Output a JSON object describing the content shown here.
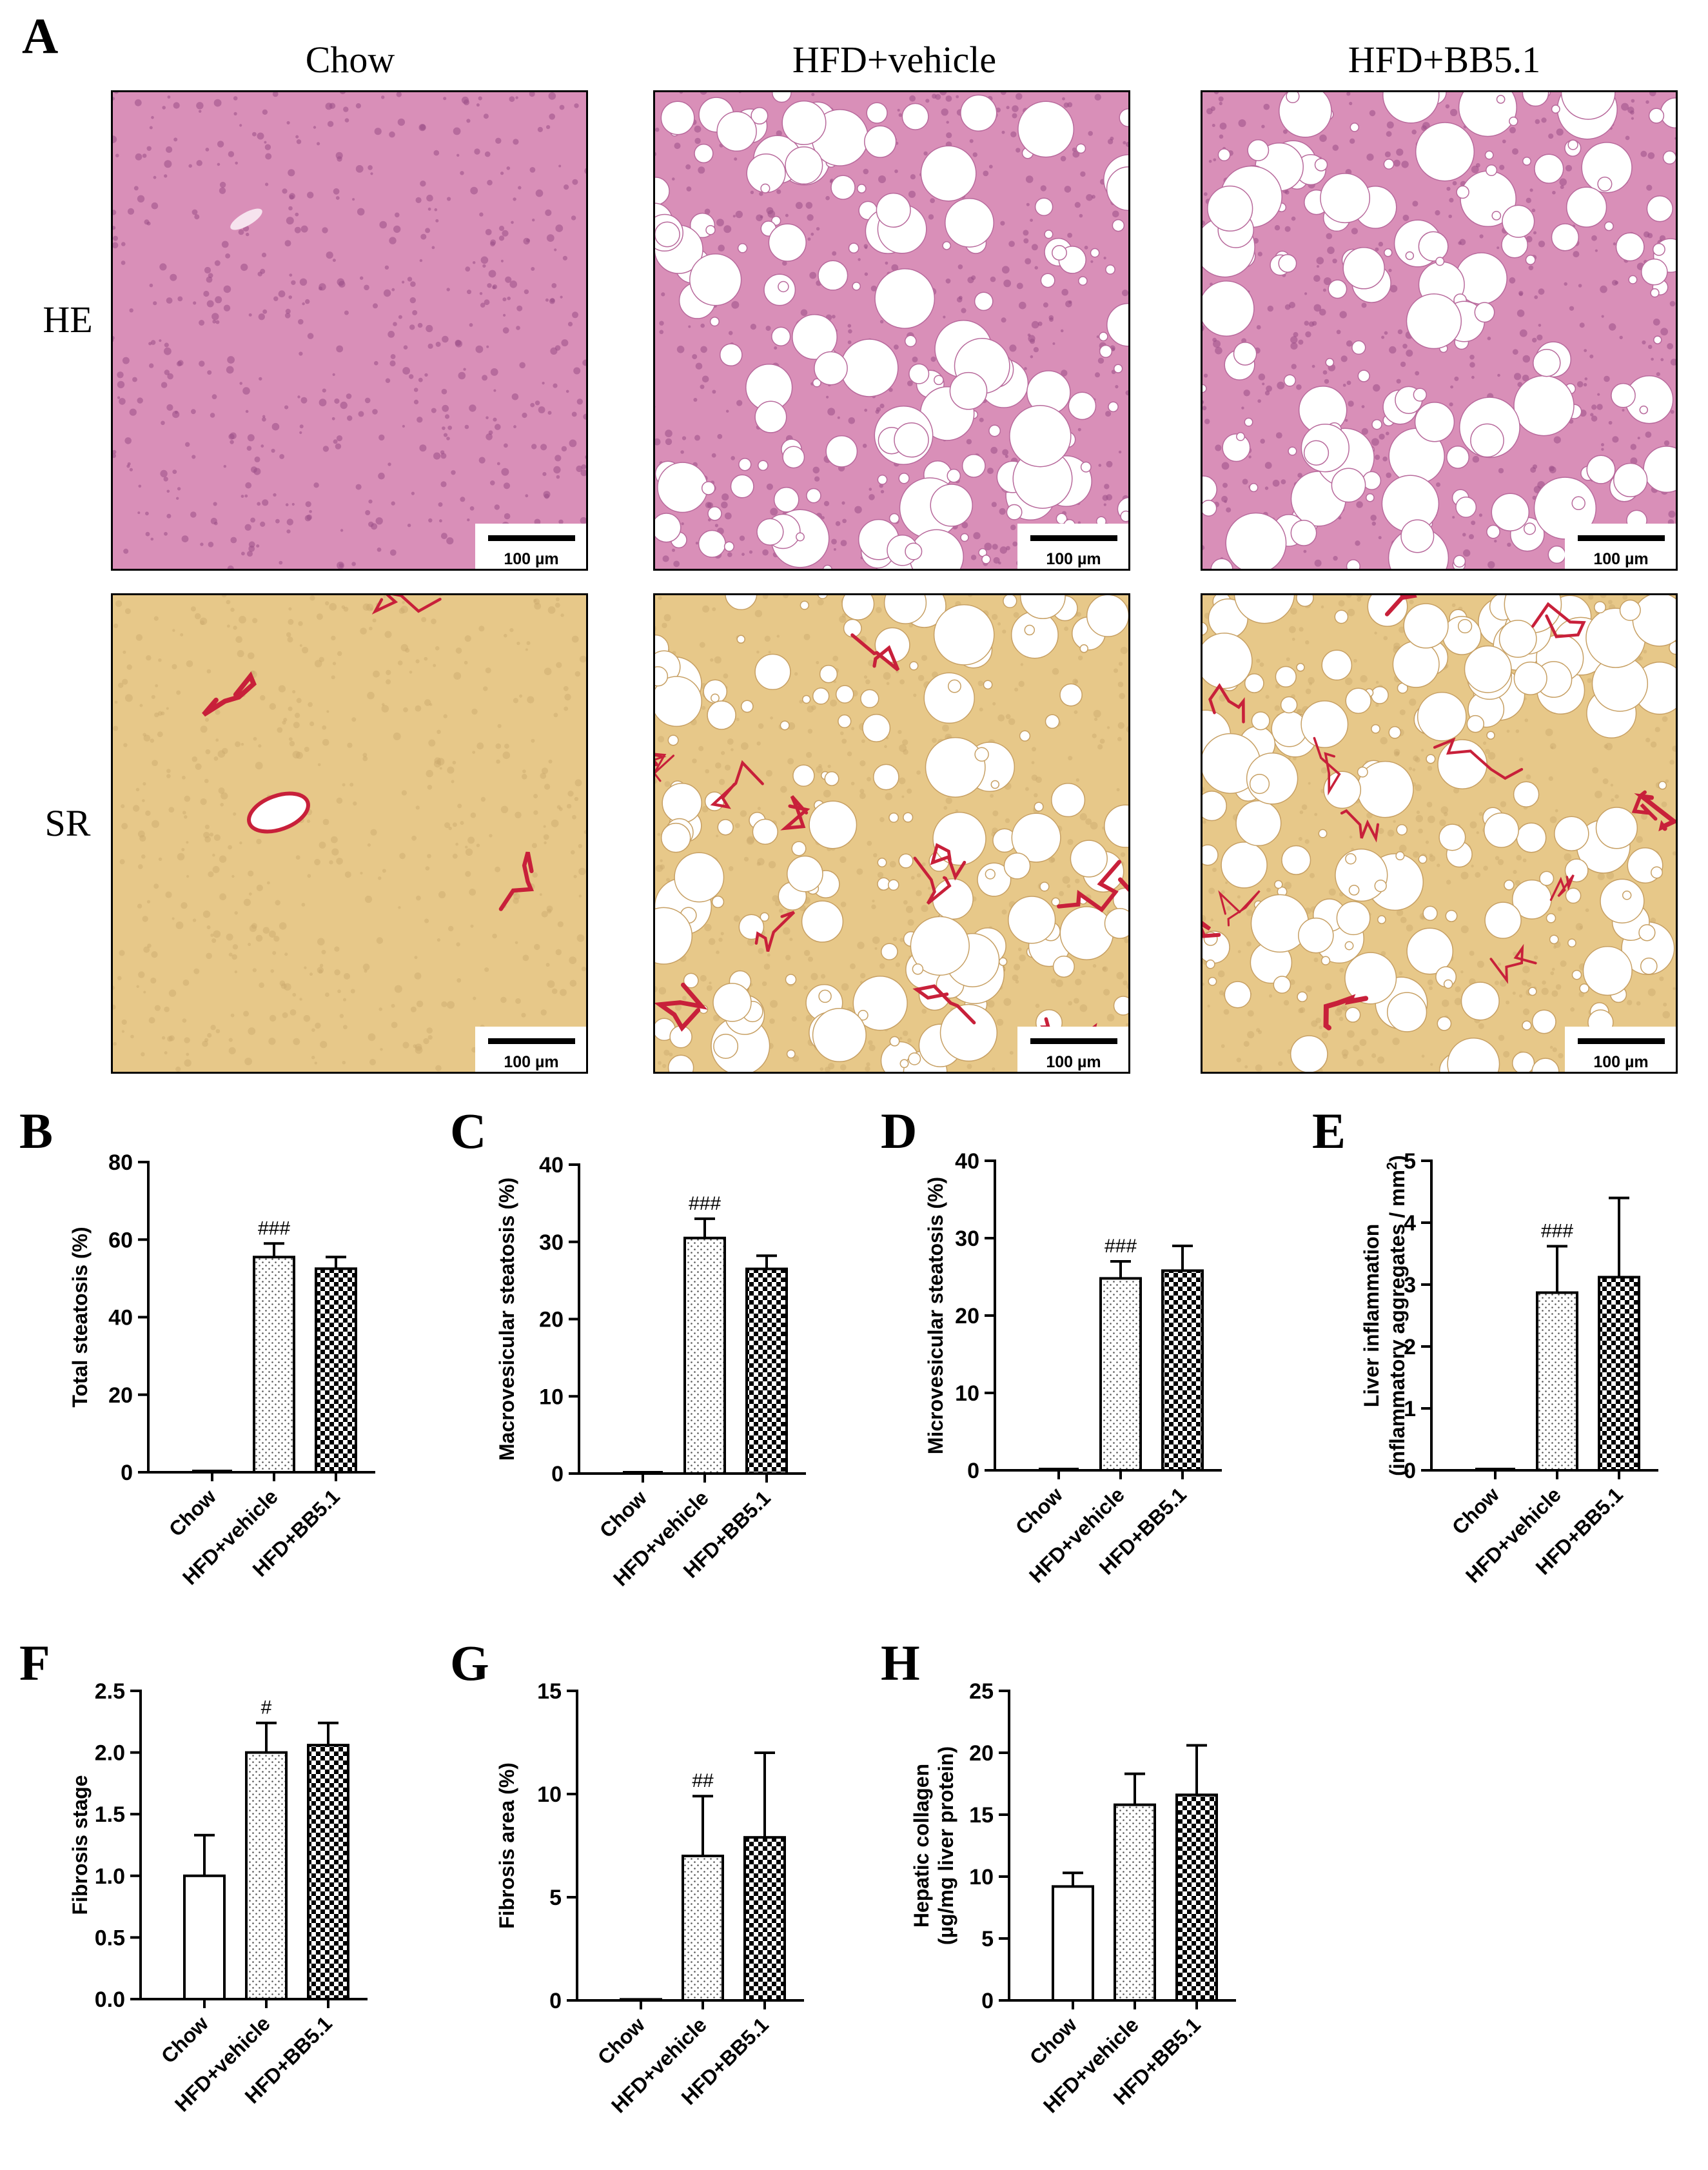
{
  "figure": {
    "panel_a": {
      "letter": "A",
      "columns": [
        "Chow",
        "HFD+vehicle",
        "HFD+BB5.1"
      ],
      "rows": [
        "HE",
        "SR"
      ],
      "scale_bar_label": "100 µm",
      "colors": {
        "he_tissue": "#d98fb8",
        "he_nuclei": "#9b4f86",
        "sr_tissue": "#e7c889",
        "sr_fiber": "#c8203a",
        "lipid_droplet": "#ffffff"
      }
    }
  },
  "chart_data": [
    {
      "panel": "B",
      "type": "bar",
      "categories": [
        "Chow",
        "HFD+vehicle",
        "HFD+BB5.1"
      ],
      "values": [
        0,
        55.5,
        52.5
      ],
      "errors": [
        0,
        3.5,
        3.0
      ],
      "annotations": [
        "",
        "###",
        ""
      ],
      "ylabel": "Total steatosis (%)",
      "ylim": [
        0,
        80
      ],
      "yticks": [
        "0",
        "20",
        "40",
        "60",
        "80"
      ]
    },
    {
      "panel": "C",
      "type": "bar",
      "categories": [
        "Chow",
        "HFD+vehicle",
        "HFD+BB5.1"
      ],
      "values": [
        0,
        30.5,
        26.5
      ],
      "errors": [
        0,
        2.5,
        1.7
      ],
      "annotations": [
        "",
        "###",
        ""
      ],
      "ylabel": "Macrovesicular steatosis (%)",
      "ylim": [
        0,
        40
      ],
      "yticks": [
        "0",
        "10",
        "20",
        "30",
        "40"
      ]
    },
    {
      "panel": "D",
      "type": "bar",
      "categories": [
        "Chow",
        "HFD+vehicle",
        "HFD+BB5.1"
      ],
      "values": [
        0,
        24.8,
        25.8
      ],
      "errors": [
        0,
        2.2,
        3.2
      ],
      "annotations": [
        "",
        "###",
        ""
      ],
      "ylabel": "Microvesicular steatosis (%)",
      "ylim": [
        0,
        40
      ],
      "yticks": [
        "0",
        "10",
        "20",
        "30",
        "40"
      ]
    },
    {
      "panel": "E",
      "type": "bar",
      "categories": [
        "Chow",
        "HFD+vehicle",
        "HFD+BB5.1"
      ],
      "values": [
        0,
        2.87,
        3.12
      ],
      "errors": [
        0,
        0.75,
        1.28
      ],
      "annotations": [
        "",
        "###",
        ""
      ],
      "ylabel": "Liver inflammation",
      "ylabel2": "(inflammatory aggregates / mm",
      "ylabel2_sup": "2",
      "ylabel2_end": ")",
      "ylim": [
        0,
        5
      ],
      "yticks": [
        "0",
        "1",
        "2",
        "3",
        "4",
        "5"
      ]
    },
    {
      "panel": "F",
      "type": "bar",
      "categories": [
        "Chow",
        "HFD+vehicle",
        "HFD+BB5.1"
      ],
      "values": [
        1.0,
        2.0,
        2.06
      ],
      "errors": [
        0.33,
        0.24,
        0.18
      ],
      "annotations": [
        "",
        "#",
        ""
      ],
      "ylabel": "Fibrosis stage",
      "ylim": [
        0,
        2.5
      ],
      "yticks": [
        "0.0",
        "0.5",
        "1.0",
        "1.5",
        "2.0",
        "2.5"
      ]
    },
    {
      "panel": "G",
      "type": "bar",
      "categories": [
        "Chow",
        "HFD+vehicle",
        "HFD+BB5.1"
      ],
      "values": [
        0.05,
        7.0,
        7.9
      ],
      "errors": [
        0,
        2.9,
        4.1
      ],
      "annotations": [
        "",
        "##",
        ""
      ],
      "ylabel": "Fibrosis area (%)",
      "ylim": [
        0,
        15
      ],
      "yticks": [
        "0",
        "5",
        "10",
        "15"
      ]
    },
    {
      "panel": "H",
      "type": "bar",
      "categories": [
        "Chow",
        "HFD+vehicle",
        "HFD+BB5.1"
      ],
      "values": [
        9.2,
        15.8,
        16.6
      ],
      "errors": [
        1.1,
        2.5,
        4.0
      ],
      "annotations": [
        "",
        "",
        ""
      ],
      "ylabel": "Hepatic collagen",
      "ylabel2": "(µg/mg liver protein)",
      "ylim": [
        0,
        25
      ],
      "yticks": [
        "0",
        "5",
        "10",
        "15",
        "20",
        "25"
      ]
    }
  ]
}
